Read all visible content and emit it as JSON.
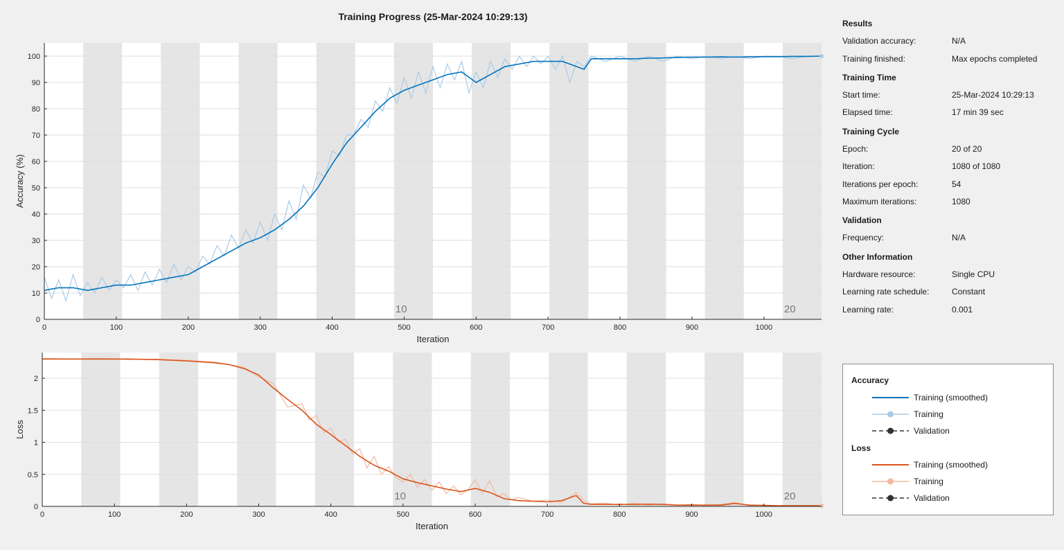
{
  "title": "Training Progress (25-Mar-2024 10:29:13)",
  "colors": {
    "accuracy_smoothed": "#0072bd",
    "accuracy_raw": "#a9cbe6",
    "loss_smoothed": "#d95319",
    "loss_raw": "#f2b8a0",
    "validation": "#333333",
    "epoch_shade": "#e5e5e5",
    "grid": "#dedede"
  },
  "info": {
    "results_heading": "Results",
    "validation_accuracy_label": "Validation accuracy:",
    "validation_accuracy_value": "N/A",
    "training_finished_label": "Training finished:",
    "training_finished_value": "Max epochs completed",
    "training_time_heading": "Training Time",
    "start_time_label": "Start time:",
    "start_time_value": "25-Mar-2024 10:29:13",
    "elapsed_time_label": "Elapsed time:",
    "elapsed_time_value": "17 min 39 sec",
    "training_cycle_heading": "Training Cycle",
    "epoch_label": "Epoch:",
    "epoch_value": "20 of 20",
    "iteration_label": "Iteration:",
    "iteration_value": "1080 of 1080",
    "iterations_per_epoch_label": "Iterations per epoch:",
    "iterations_per_epoch_value": "54",
    "maximum_iterations_label": "Maximum iterations:",
    "maximum_iterations_value": "1080",
    "validation_heading": "Validation",
    "frequency_label": "Frequency:",
    "frequency_value": "N/A",
    "other_information_heading": "Other Information",
    "hardware_resource_label": "Hardware resource:",
    "hardware_resource_value": "Single CPU",
    "learning_rate_schedule_label": "Learning rate schedule:",
    "learning_rate_schedule_value": "Constant",
    "learning_rate_label": "Learning rate:",
    "learning_rate_value": "0.001"
  },
  "legend": {
    "accuracy_heading": "Accuracy",
    "accuracy_smoothed": "Training (smoothed)",
    "accuracy_training": "Training",
    "accuracy_validation": "Validation",
    "loss_heading": "Loss",
    "loss_smoothed": "Training (smoothed)",
    "loss_training": "Training",
    "loss_validation": "Validation"
  },
  "chart_data": [
    {
      "type": "line",
      "xlabel": "Iteration",
      "ylabel": "Accuracy (%)",
      "xlim": [
        0,
        1080
      ],
      "ylim": [
        0,
        105
      ],
      "xticks": [
        0,
        100,
        200,
        300,
        400,
        500,
        600,
        700,
        800,
        900,
        1000
      ],
      "yticks": [
        0,
        10,
        20,
        30,
        40,
        50,
        60,
        70,
        80,
        90,
        100
      ],
      "grid": true,
      "iterations_per_epoch": 54,
      "epoch_labels": [
        {
          "epoch": 10,
          "label": "10"
        },
        {
          "epoch": 20,
          "label": "20"
        }
      ],
      "series": [
        {
          "name": "Training (smoothed)",
          "x": [
            0,
            20,
            40,
            60,
            80,
            100,
            120,
            140,
            160,
            180,
            200,
            220,
            240,
            260,
            280,
            300,
            320,
            340,
            360,
            380,
            400,
            420,
            440,
            460,
            480,
            500,
            520,
            540,
            560,
            580,
            600,
            620,
            640,
            660,
            680,
            700,
            720,
            740,
            750,
            760,
            780,
            800,
            820,
            840,
            860,
            880,
            900,
            920,
            940,
            960,
            980,
            1000,
            1020,
            1040,
            1060,
            1080
          ],
          "values": [
            11,
            12,
            12,
            11,
            12,
            13,
            13,
            14,
            15,
            16,
            17,
            20,
            23,
            26,
            29,
            31,
            34,
            38,
            43,
            50,
            59,
            67,
            73,
            79,
            84,
            87,
            89,
            91,
            93,
            94,
            90,
            93,
            96,
            97,
            98,
            98,
            98,
            96,
            95,
            99,
            99,
            99,
            99,
            99.2,
            99.3,
            99.5,
            99.6,
            99.6,
            99.7,
            99.6,
            99.7,
            99.8,
            99.8,
            99.9,
            99.9,
            100
          ]
        },
        {
          "name": "Training",
          "x": [
            0,
            10,
            20,
            30,
            40,
            50,
            60,
            70,
            80,
            90,
            100,
            110,
            120,
            130,
            140,
            150,
            160,
            170,
            180,
            190,
            200,
            210,
            220,
            230,
            240,
            250,
            260,
            270,
            280,
            290,
            300,
            310,
            320,
            330,
            340,
            350,
            360,
            370,
            380,
            390,
            400,
            410,
            420,
            430,
            440,
            450,
            460,
            470,
            480,
            490,
            500,
            510,
            520,
            530,
            540,
            550,
            560,
            570,
            580,
            590,
            600,
            610,
            620,
            630,
            640,
            650,
            660,
            670,
            680,
            690,
            700,
            710,
            720,
            730,
            740,
            750,
            760,
            780,
            800,
            820,
            840,
            860,
            880,
            900,
            920,
            940,
            960,
            980,
            1000,
            1020,
            1040,
            1060,
            1080
          ],
          "values": [
            16,
            8,
            15,
            7,
            17,
            9,
            14,
            10,
            16,
            11,
            15,
            12,
            17,
            11,
            18,
            13,
            19,
            14,
            21,
            15,
            20,
            18,
            24,
            21,
            28,
            24,
            32,
            27,
            34,
            29,
            37,
            30,
            40,
            34,
            45,
            38,
            51,
            46,
            56,
            54,
            64,
            62,
            70,
            70,
            76,
            73,
            83,
            79,
            88,
            82,
            92,
            84,
            94,
            86,
            96,
            88,
            97,
            91,
            98,
            86,
            94,
            88,
            98,
            92,
            99,
            95,
            100,
            96,
            100,
            97,
            100,
            95,
            100,
            90,
            98,
            96,
            100,
            98,
            100,
            98,
            100,
            98,
            100,
            99,
            100,
            99,
            100,
            99,
            100,
            100,
            99,
            100,
            100
          ]
        }
      ]
    },
    {
      "type": "line",
      "xlabel": "Iteration",
      "ylabel": "Loss",
      "xlim": [
        0,
        1080
      ],
      "ylim": [
        0,
        2.4
      ],
      "xticks": [
        0,
        100,
        200,
        300,
        400,
        500,
        600,
        700,
        800,
        900,
        1000
      ],
      "yticks": [
        0,
        0.5,
        1,
        1.5,
        2
      ],
      "ytick_labels": [
        "0",
        "0.5",
        "1",
        "1.5",
        "2"
      ],
      "grid": true,
      "iterations_per_epoch": 54,
      "epoch_labels": [
        {
          "epoch": 10,
          "label": "10"
        },
        {
          "epoch": 20,
          "label": "20"
        }
      ],
      "series": [
        {
          "name": "Training (smoothed)",
          "x": [
            0,
            40,
            80,
            120,
            160,
            200,
            240,
            260,
            280,
            300,
            320,
            340,
            360,
            380,
            400,
            420,
            440,
            460,
            480,
            500,
            520,
            540,
            560,
            580,
            600,
            620,
            640,
            660,
            680,
            700,
            720,
            740,
            750,
            760,
            780,
            800,
            820,
            840,
            860,
            880,
            900,
            920,
            940,
            960,
            980,
            1000,
            1020,
            1040,
            1060,
            1080
          ],
          "values": [
            2.3,
            2.3,
            2.3,
            2.3,
            2.29,
            2.27,
            2.24,
            2.21,
            2.15,
            2.05,
            1.85,
            1.67,
            1.5,
            1.28,
            1.12,
            0.95,
            0.78,
            0.64,
            0.55,
            0.43,
            0.37,
            0.32,
            0.27,
            0.23,
            0.28,
            0.22,
            0.12,
            0.09,
            0.08,
            0.07,
            0.09,
            0.17,
            0.05,
            0.03,
            0.03,
            0.03,
            0.03,
            0.035,
            0.03,
            0.02,
            0.02,
            0.02,
            0.02,
            0.045,
            0.02,
            0.015,
            0.01,
            0.01,
            0.01,
            0.01
          ]
        },
        {
          "name": "Training",
          "x": [
            0,
            40,
            80,
            120,
            160,
            200,
            240,
            280,
            300,
            320,
            340,
            360,
            370,
            380,
            390,
            400,
            410,
            420,
            430,
            440,
            450,
            460,
            470,
            480,
            490,
            500,
            510,
            520,
            530,
            540,
            550,
            560,
            570,
            580,
            590,
            600,
            610,
            620,
            630,
            640,
            650,
            660,
            680,
            700,
            720,
            740,
            750,
            760,
            780,
            800,
            820,
            840,
            860,
            880,
            900,
            920,
            940,
            960,
            980,
            1000,
            1020,
            1040,
            1060,
            1080
          ],
          "values": [
            2.31,
            2.3,
            2.31,
            2.29,
            2.3,
            2.28,
            2.25,
            2.17,
            2.02,
            1.92,
            1.55,
            1.6,
            1.35,
            1.42,
            1.15,
            1.22,
            1.0,
            1.05,
            0.82,
            0.9,
            0.6,
            0.78,
            0.5,
            0.62,
            0.45,
            0.38,
            0.5,
            0.3,
            0.42,
            0.25,
            0.38,
            0.2,
            0.32,
            0.18,
            0.26,
            0.42,
            0.2,
            0.4,
            0.15,
            0.2,
            0.1,
            0.14,
            0.08,
            0.1,
            0.06,
            0.22,
            0.1,
            0.04,
            0.05,
            0.02,
            0.05,
            0.02,
            0.04,
            0.02,
            0.03,
            0.01,
            0.03,
            0.06,
            0.01,
            0.02,
            0.005,
            0.01,
            0.005,
            0.01
          ]
        }
      ]
    }
  ]
}
